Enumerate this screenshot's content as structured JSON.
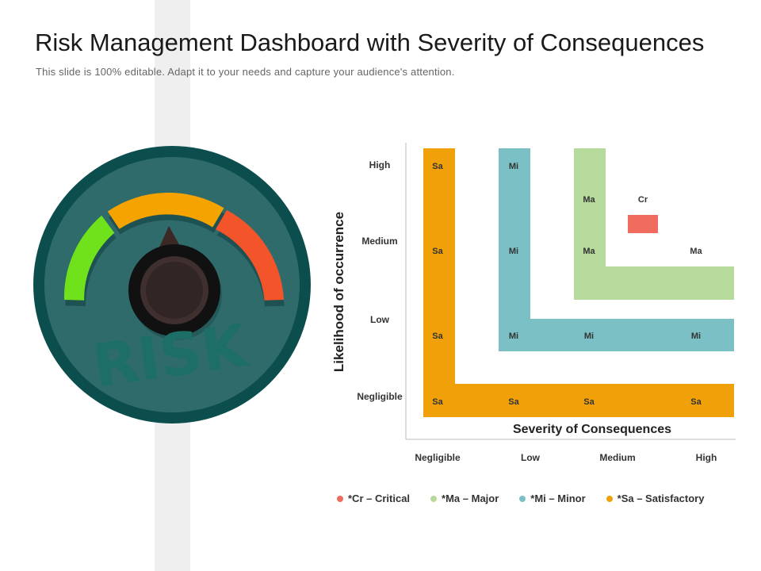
{
  "slide": {
    "title": "Risk Management Dashboard with Severity of Consequences",
    "subtitle": "This slide is 100% editable. Adapt it to your needs and capture your audience's attention."
  },
  "gauge": {
    "label": "RISK",
    "colors": {
      "outer": "#0c4e4e",
      "face": "#2f6b6b",
      "green": "#6fe21c",
      "orange": "#f5a300",
      "red": "#f4542a",
      "knob": "#161616",
      "needle": "#3b2724",
      "text": "#1d6e66"
    }
  },
  "chart_data": {
    "type": "risk-matrix",
    "xlabel": "Severity of Consequences",
    "ylabel": "Likelihood of occurrence",
    "x_categories": [
      "Negligible",
      "Low",
      "Medium",
      "High"
    ],
    "y_categories": [
      "Negligible",
      "Low",
      "Medium",
      "High"
    ],
    "regions": [
      {
        "code": "Sa",
        "name": "Satisfactory",
        "color": "#f0a10a"
      },
      {
        "code": "Mi",
        "name": "Minor",
        "color": "#7bc0c4"
      },
      {
        "code": "Ma",
        "name": "Major",
        "color": "#b6d99c"
      },
      {
        "code": "Cr",
        "name": "Critical",
        "color": "#ef6b5e"
      }
    ],
    "cells": [
      {
        "severity": "Negligible",
        "likelihood": "High",
        "code": "Sa"
      },
      {
        "severity": "Negligible",
        "likelihood": "Medium",
        "code": "Sa"
      },
      {
        "severity": "Negligible",
        "likelihood": "Low",
        "code": "Sa"
      },
      {
        "severity": "Negligible",
        "likelihood": "Negligible",
        "code": "Sa"
      },
      {
        "severity": "Low",
        "likelihood": "Negligible",
        "code": "Sa"
      },
      {
        "severity": "Medium",
        "likelihood": "Negligible",
        "code": "Sa"
      },
      {
        "severity": "High",
        "likelihood": "Negligible",
        "code": "Sa"
      },
      {
        "severity": "Low",
        "likelihood": "High",
        "code": "Mi"
      },
      {
        "severity": "Low",
        "likelihood": "Medium",
        "code": "Mi"
      },
      {
        "severity": "Low",
        "likelihood": "Low",
        "code": "Mi"
      },
      {
        "severity": "Medium",
        "likelihood": "Low",
        "code": "Mi"
      },
      {
        "severity": "High",
        "likelihood": "Low",
        "code": "Mi"
      },
      {
        "severity": "Medium",
        "likelihood": "Medium-High",
        "code": "Ma"
      },
      {
        "severity": "Medium",
        "likelihood": "Medium",
        "code": "Ma"
      },
      {
        "severity": "High",
        "likelihood": "Medium",
        "code": "Ma"
      },
      {
        "severity": "Medium-High",
        "likelihood": "Medium-High",
        "code": "Cr"
      }
    ],
    "legend": [
      {
        "label": "*Cr – Critical",
        "color": "#ef6b5e"
      },
      {
        "label": "*Ma – Major",
        "color": "#b6d99c"
      },
      {
        "label": "*Mi – Minor",
        "color": "#7bc0c4"
      },
      {
        "label": "*Sa – Satisfactory",
        "color": "#f0a10a"
      }
    ]
  }
}
